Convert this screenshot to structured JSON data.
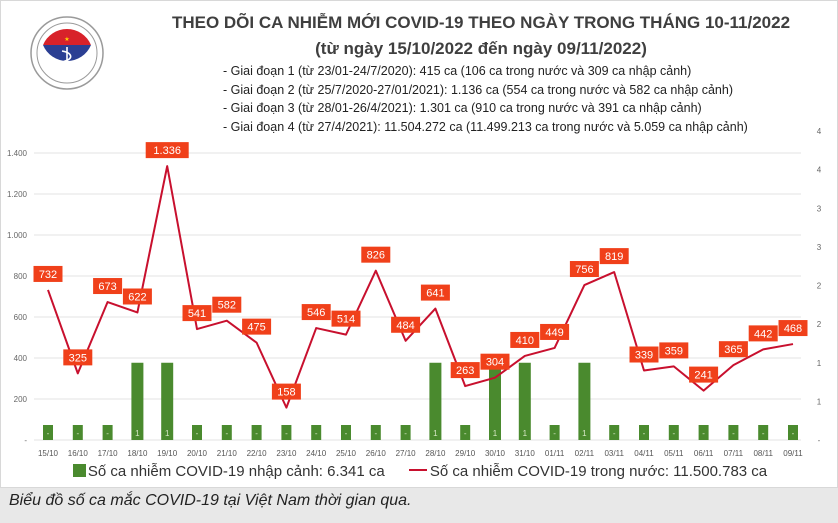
{
  "logo": {
    "text_top": "BỘ Y TẾ",
    "text_bottom": "MINISTRY OF HEALTH"
  },
  "header": {
    "title": "THEO DÕI CA NHIỄM MỚI COVID-19 THEO NGÀY TRONG THÁNG 10-11/2022",
    "subtitle": "(từ ngày 15/10/2022 đến ngày 09/11/2022)",
    "phases": [
      "- Giai đoạn 1 (từ 23/01-24/7/2020): 415 ca (106 ca trong nước và 309 ca nhập cảnh)",
      "- Giai đoạn 2 (từ 25/7/2020-27/01/2021): 1.136 ca (554 ca trong nước và 582 ca nhập cảnh)",
      "- Giai đoạn 3 (từ 28/01-26/4/2021): 1.301 ca (910 ca trong nước và 391 ca nhập cảnh)",
      "- Giai đoạn 4 (từ 27/4/2021): 11.504.272 ca (11.499.213 ca trong nước và 5.059 ca nhập cảnh)"
    ]
  },
  "chart_data": {
    "type": "bar+line",
    "categories": [
      "15/10",
      "16/10",
      "17/10",
      "18/10",
      "19/10",
      "20/10",
      "21/10",
      "22/10",
      "23/10",
      "24/10",
      "25/10",
      "26/10",
      "27/10",
      "28/10",
      "29/10",
      "30/10",
      "31/10",
      "01/11",
      "02/11",
      "03/11",
      "04/11",
      "05/11",
      "06/11",
      "07/11",
      "08/11",
      "09/11"
    ],
    "series": [
      {
        "name": "Số ca nhiễm COVID-19 nhập cảnh: 6.341 ca",
        "type": "bar",
        "axis": "right",
        "color": "#4a8a2e",
        "values": [
          0,
          0,
          0,
          1,
          1,
          0,
          0,
          0,
          0,
          0,
          0,
          0,
          0,
          1,
          0,
          1,
          1,
          0,
          1,
          0,
          0,
          0,
          0,
          0,
          0,
          0
        ]
      },
      {
        "name": "Số ca nhiễm COVID-19 trong nước: 11.500.783 ca",
        "type": "line",
        "axis": "left",
        "color": "#c8102e",
        "label_color": "#f0401a",
        "values": [
          732,
          325,
          673,
          622,
          1336,
          541,
          582,
          475,
          158,
          546,
          514,
          826,
          484,
          641,
          263,
          304,
          410,
          449,
          756,
          819,
          339,
          359,
          241,
          365,
          442,
          468
        ],
        "labels": [
          "732",
          "325",
          "673",
          "622",
          "1.336",
          "541",
          "582",
          "475",
          "158",
          "546",
          "514",
          "826",
          "484",
          "641",
          "263",
          "304",
          "410",
          "449",
          "756",
          "819",
          "339",
          "359",
          "241",
          "365",
          "442",
          "468"
        ]
      }
    ],
    "left_axis": {
      "ylim": [
        0,
        1400
      ],
      "ticks": [
        0,
        200,
        400,
        600,
        800,
        1000,
        1200,
        1400
      ],
      "tick_labels": [
        "-",
        "200",
        "400",
        "600",
        "800",
        "1.000",
        "1.200",
        "1.400"
      ]
    },
    "right_axis": {
      "ylim": [
        0,
        4
      ],
      "ticks": [
        0,
        0.5,
        1,
        1.5,
        2,
        2.5,
        3,
        3.5,
        4
      ],
      "tick_labels": [
        "-",
        "1",
        "1",
        "2",
        "2",
        "3",
        "3",
        "4",
        "4"
      ]
    },
    "bar_labels": [
      "-",
      "-",
      "-",
      "1",
      "1",
      "-",
      "-",
      "-",
      "-",
      "-",
      "-",
      "-",
      "-",
      "1",
      "-",
      "1",
      "1",
      "-",
      "1",
      "-",
      "-",
      "-",
      "-",
      "-",
      "-",
      "-"
    ],
    "grid": true,
    "legend": "bottom"
  },
  "caption": "Biểu đồ số ca mắc COVID-19 tại Việt Nam thời gian qua."
}
